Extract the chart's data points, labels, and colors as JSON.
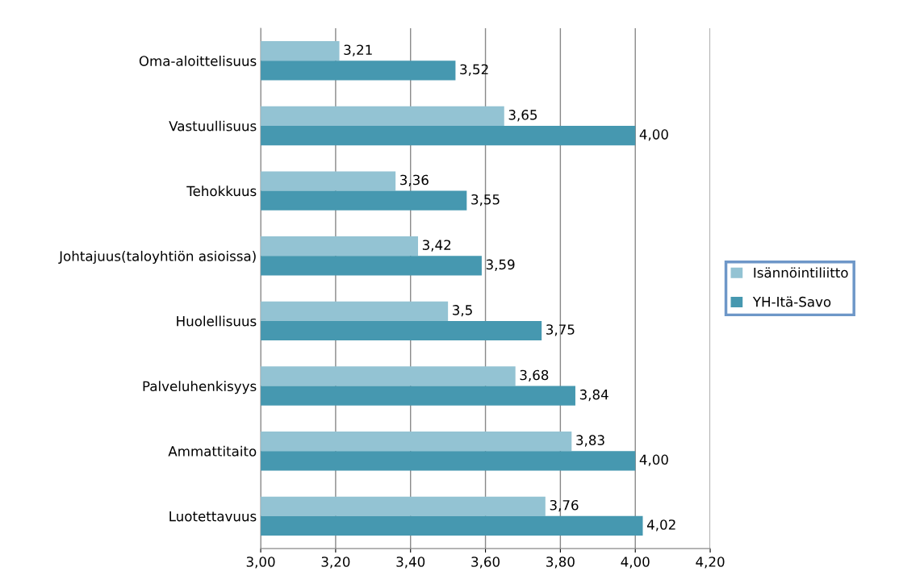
{
  "chart_data": {
    "type": "bar",
    "orientation": "horizontal",
    "categories": [
      "Oma-aloittelisuus",
      "Vastuullisuus",
      "Tehokkuus",
      "Johtajuus(taloyhtiön asioissa)",
      "Huolellisuus",
      "Palveluhenkisyys",
      "Ammattitaito",
      "Luotettavuus"
    ],
    "series": [
      {
        "name": "Isännöintiliitto",
        "color": "#93c3d3",
        "values": [
          3.21,
          3.65,
          3.36,
          3.42,
          3.5,
          3.68,
          3.83,
          3.76
        ],
        "value_labels": [
          "3,21",
          "3,65",
          "3,36",
          "3,42",
          "3,5",
          "3,68",
          "3,83",
          "3,76"
        ]
      },
      {
        "name": "YH-Itä-Savo",
        "color": "#4698b0",
        "values": [
          3.52,
          4.0,
          3.55,
          3.59,
          3.75,
          3.84,
          4.0,
          4.02
        ],
        "value_labels": [
          "3,52",
          "4,00",
          "3,55",
          "3,59",
          "3,75",
          "3,84",
          "4,00",
          "4,02"
        ]
      }
    ],
    "xlim": [
      3.0,
      4.2
    ],
    "xticks": [
      {
        "value": 3.0,
        "label": "3,00"
      },
      {
        "value": 3.2,
        "label": "3,20"
      },
      {
        "value": 3.4,
        "label": "3,40"
      },
      {
        "value": 3.6,
        "label": "3,60"
      },
      {
        "value": 3.8,
        "label": "3,80"
      },
      {
        "value": 4.0,
        "label": "4,00"
      },
      {
        "value": 4.2,
        "label": "4,20"
      }
    ],
    "grid": "x",
    "legend": "right"
  }
}
